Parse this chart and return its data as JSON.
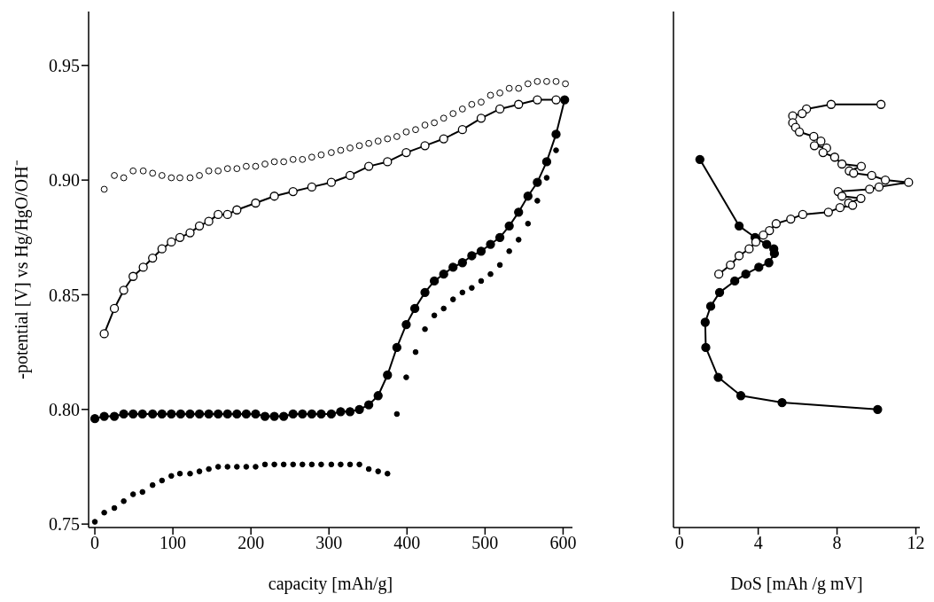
{
  "chart_data": [
    {
      "type": "scatter",
      "xlabel": "capacity [mAh/g]",
      "ylabel": "-potential [V] vs Hg/HgO/OH⁻",
      "xlim": [
        -8,
        612
      ],
      "ylim": [
        0.7485,
        0.9735
      ],
      "xticks": [
        0,
        100,
        200,
        300,
        400,
        500,
        600
      ],
      "yticks": [
        0.75,
        {
          "value": 0.8,
          "label": "0.80"
        },
        0.85,
        {
          "value": 0.9,
          "label": "0.90"
        },
        0.95
      ],
      "series": [
        {
          "type": "line",
          "color": "#ffffff",
          "marker": "circle",
          "x": [
            12,
            25,
            37,
            49,
            62,
            74,
            86,
            98,
            109,
            122,
            134,
            146,
            158,
            170,
            182,
            206,
            230,
            254,
            278,
            303,
            327,
            351,
            375,
            399,
            423,
            447,
            471,
            495,
            519,
            543,
            567,
            591
          ],
          "values": [
            0.833,
            0.844,
            0.852,
            0.858,
            0.862,
            0.866,
            0.87,
            0.873,
            0.875,
            0.877,
            0.88,
            0.882,
            0.885,
            0.885,
            0.887,
            0.89,
            0.893,
            0.895,
            0.897,
            0.899,
            0.902,
            0.906,
            0.908,
            0.912,
            0.915,
            0.918,
            0.922,
            0.927,
            0.931,
            0.933,
            0.935,
            0.935
          ]
        },
        {
          "type": "scatter",
          "color": "#ffffff",
          "marker": "circle",
          "x": [
            12,
            25,
            37,
            49,
            62,
            74,
            86,
            98,
            109,
            122,
            134,
            146,
            158,
            170,
            182,
            194,
            206,
            218,
            230,
            242,
            254,
            266,
            278,
            290,
            303,
            315,
            327,
            339,
            351,
            363,
            375,
            387,
            399,
            411,
            423,
            435,
            447,
            459,
            471,
            483,
            495,
            507,
            519,
            531,
            543,
            555,
            567,
            579,
            591,
            603
          ],
          "values": [
            0.896,
            0.902,
            0.901,
            0.904,
            0.904,
            0.903,
            0.902,
            0.901,
            0.901,
            0.901,
            0.902,
            0.904,
            0.904,
            0.905,
            0.905,
            0.906,
            0.906,
            0.907,
            0.908,
            0.908,
            0.909,
            0.909,
            0.91,
            0.911,
            0.912,
            0.913,
            0.914,
            0.915,
            0.916,
            0.917,
            0.918,
            0.919,
            0.921,
            0.922,
            0.924,
            0.925,
            0.927,
            0.929,
            0.931,
            0.933,
            0.934,
            0.937,
            0.938,
            0.94,
            0.94,
            0.942,
            0.943,
            0.943,
            0.943,
            0.942
          ]
        },
        {
          "type": "line",
          "color": "#000000",
          "marker": "circle",
          "x": [
            0,
            12,
            25,
            37,
            49,
            61,
            74,
            86,
            98,
            110,
            122,
            134,
            146,
            158,
            170,
            182,
            194,
            206,
            218,
            230,
            242,
            254,
            266,
            278,
            290,
            303,
            315,
            327,
            339,
            351,
            363,
            375,
            387,
            399,
            410,
            423,
            435,
            447,
            459,
            471,
            483,
            495,
            507,
            519,
            531,
            543,
            555,
            567,
            579,
            591,
            602
          ],
          "values": [
            0.796,
            0.797,
            0.797,
            0.798,
            0.798,
            0.798,
            0.798,
            0.798,
            0.798,
            0.798,
            0.798,
            0.798,
            0.798,
            0.798,
            0.798,
            0.798,
            0.798,
            0.798,
            0.797,
            0.797,
            0.797,
            0.798,
            0.798,
            0.798,
            0.798,
            0.798,
            0.799,
            0.799,
            0.8,
            0.802,
            0.806,
            0.815,
            0.827,
            0.837,
            0.844,
            0.851,
            0.856,
            0.859,
            0.862,
            0.864,
            0.867,
            0.869,
            0.872,
            0.875,
            0.88,
            0.886,
            0.893,
            0.899,
            0.908,
            0.92,
            0.935
          ]
        },
        {
          "type": "scatter",
          "color": "#000000",
          "marker": "circle",
          "x": [
            0,
            12,
            25,
            37,
            49,
            61,
            74,
            86,
            98,
            109,
            122,
            134,
            146,
            158,
            170,
            182,
            194,
            206,
            218,
            230,
            242,
            254,
            266,
            278,
            290,
            303,
            315,
            327,
            339,
            351,
            363,
            375,
            387,
            399,
            411,
            423,
            435,
            447,
            459,
            471,
            483,
            495,
            507,
            519,
            531,
            543,
            555,
            567,
            579,
            591
          ],
          "values": [
            0.751,
            0.755,
            0.757,
            0.76,
            0.763,
            0.764,
            0.767,
            0.769,
            0.771,
            0.772,
            0.772,
            0.773,
            0.774,
            0.775,
            0.775,
            0.775,
            0.775,
            0.775,
            0.776,
            0.776,
            0.776,
            0.776,
            0.776,
            0.776,
            0.776,
            0.776,
            0.776,
            0.776,
            0.776,
            0.774,
            0.773,
            0.772,
            0.798,
            0.814,
            0.825,
            0.835,
            0.841,
            0.844,
            0.848,
            0.851,
            0.853,
            0.856,
            0.859,
            0.863,
            0.869,
            0.874,
            0.881,
            0.891,
            0.901,
            0.913
          ]
        }
      ]
    },
    {
      "type": "scatter",
      "xlabel": "DoS [mAh /g mV]",
      "xlim": [
        -0.3,
        12.2
      ],
      "ylim": [
        0.7485,
        0.9735
      ],
      "xticks": [
        0,
        4,
        8,
        12
      ],
      "tick_labels": "x",
      "series": [
        {
          "type": "line",
          "color": "#000000",
          "marker": "circle",
          "x": [
            1.04,
            3.03,
            3.84,
            4.43,
            4.79,
            4.82,
            4.54,
            4.03,
            3.37,
            2.81,
            2.04,
            1.59,
            1.31,
            1.34,
            1.97,
            3.12,
            5.21,
            10.06
          ],
          "values": [
            0.909,
            0.88,
            0.875,
            0.872,
            0.87,
            0.868,
            0.864,
            0.862,
            0.859,
            0.856,
            0.851,
            0.845,
            0.838,
            0.827,
            0.814,
            0.806,
            0.803,
            0.8
          ]
        },
        {
          "type": "line",
          "color": "#ffffff",
          "marker": "circle",
          "x": [
            10.23,
            7.7,
            6.45,
            6.23,
            5.75,
            5.75,
            5.9,
            6.09,
            6.82,
            7.18,
            6.85,
            7.47,
            7.29,
            7.88,
            8.25,
            9.23,
            8.62,
            8.84,
            9.76,
            10.45,
            11.63,
            10.13,
            9.65,
            8.06,
            8.25,
            9.21,
            8.59,
            8.79,
            8.15,
            7.56,
            6.26,
            5.65,
            4.91,
            4.57,
            4.26,
            3.88,
            3.54,
            3.03,
            2.59,
            2.0
          ],
          "values": [
            0.933,
            0.933,
            0.931,
            0.929,
            0.928,
            0.925,
            0.923,
            0.921,
            0.919,
            0.917,
            0.915,
            0.914,
            0.912,
            0.91,
            0.907,
            0.906,
            0.904,
            0.903,
            0.902,
            0.9,
            0.899,
            0.897,
            0.896,
            0.895,
            0.893,
            0.892,
            0.89,
            0.889,
            0.888,
            0.886,
            0.885,
            0.883,
            0.881,
            0.878,
            0.876,
            0.873,
            0.87,
            0.867,
            0.863,
            0.859
          ]
        }
      ]
    }
  ]
}
